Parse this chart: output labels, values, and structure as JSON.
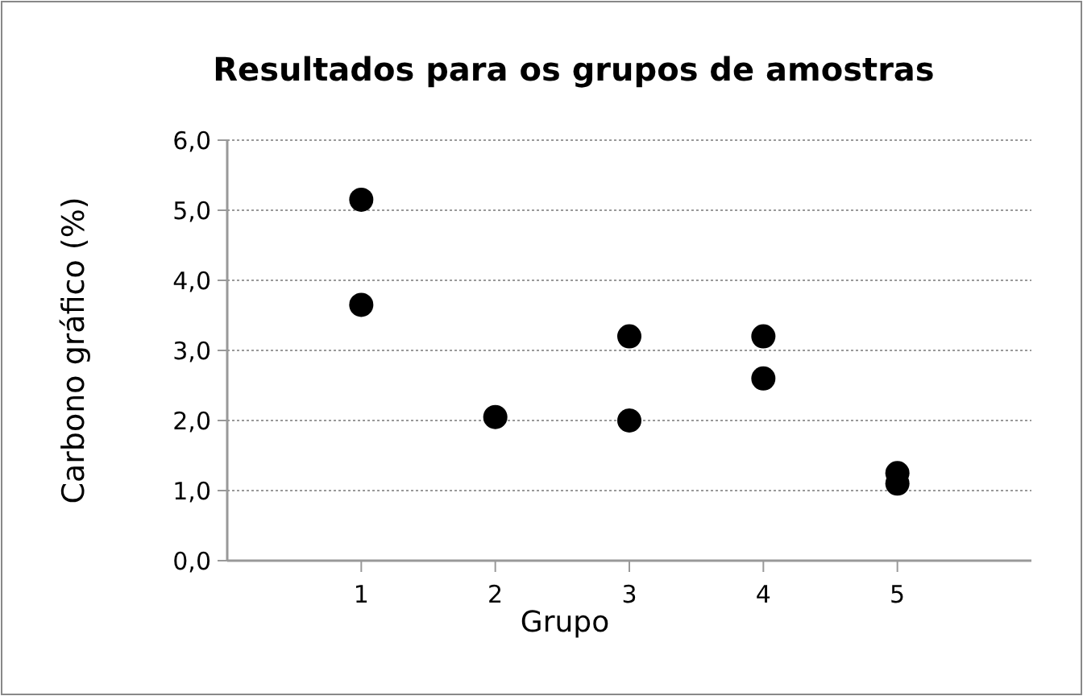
{
  "chart_data": {
    "type": "scatter",
    "title": "Resultados para os grupos de amostras",
    "xlabel": "Grupo",
    "ylabel": "Carbono gráfico (%)",
    "x": [
      1,
      1,
      2,
      3,
      3,
      4,
      4,
      5,
      5
    ],
    "values": [
      5.15,
      3.65,
      2.05,
      3.2,
      2.0,
      3.2,
      2.6,
      1.25,
      1.1
    ],
    "color": "#000000",
    "marker": "circle",
    "grid": "y",
    "xlim": [
      0,
      6
    ],
    "xticks": [
      1,
      2,
      3,
      4,
      5
    ],
    "ylim": [
      0,
      6
    ],
    "yticks": [
      {
        "value": 0,
        "label": "0,0"
      },
      {
        "value": 1,
        "label": "1,0"
      },
      {
        "value": 2,
        "label": "2,0"
      },
      {
        "value": 3,
        "label": "3,0"
      },
      {
        "value": 4,
        "label": "4,0"
      },
      {
        "value": 5,
        "label": "5,0"
      },
      {
        "value": 6,
        "label": "6,0"
      }
    ]
  }
}
